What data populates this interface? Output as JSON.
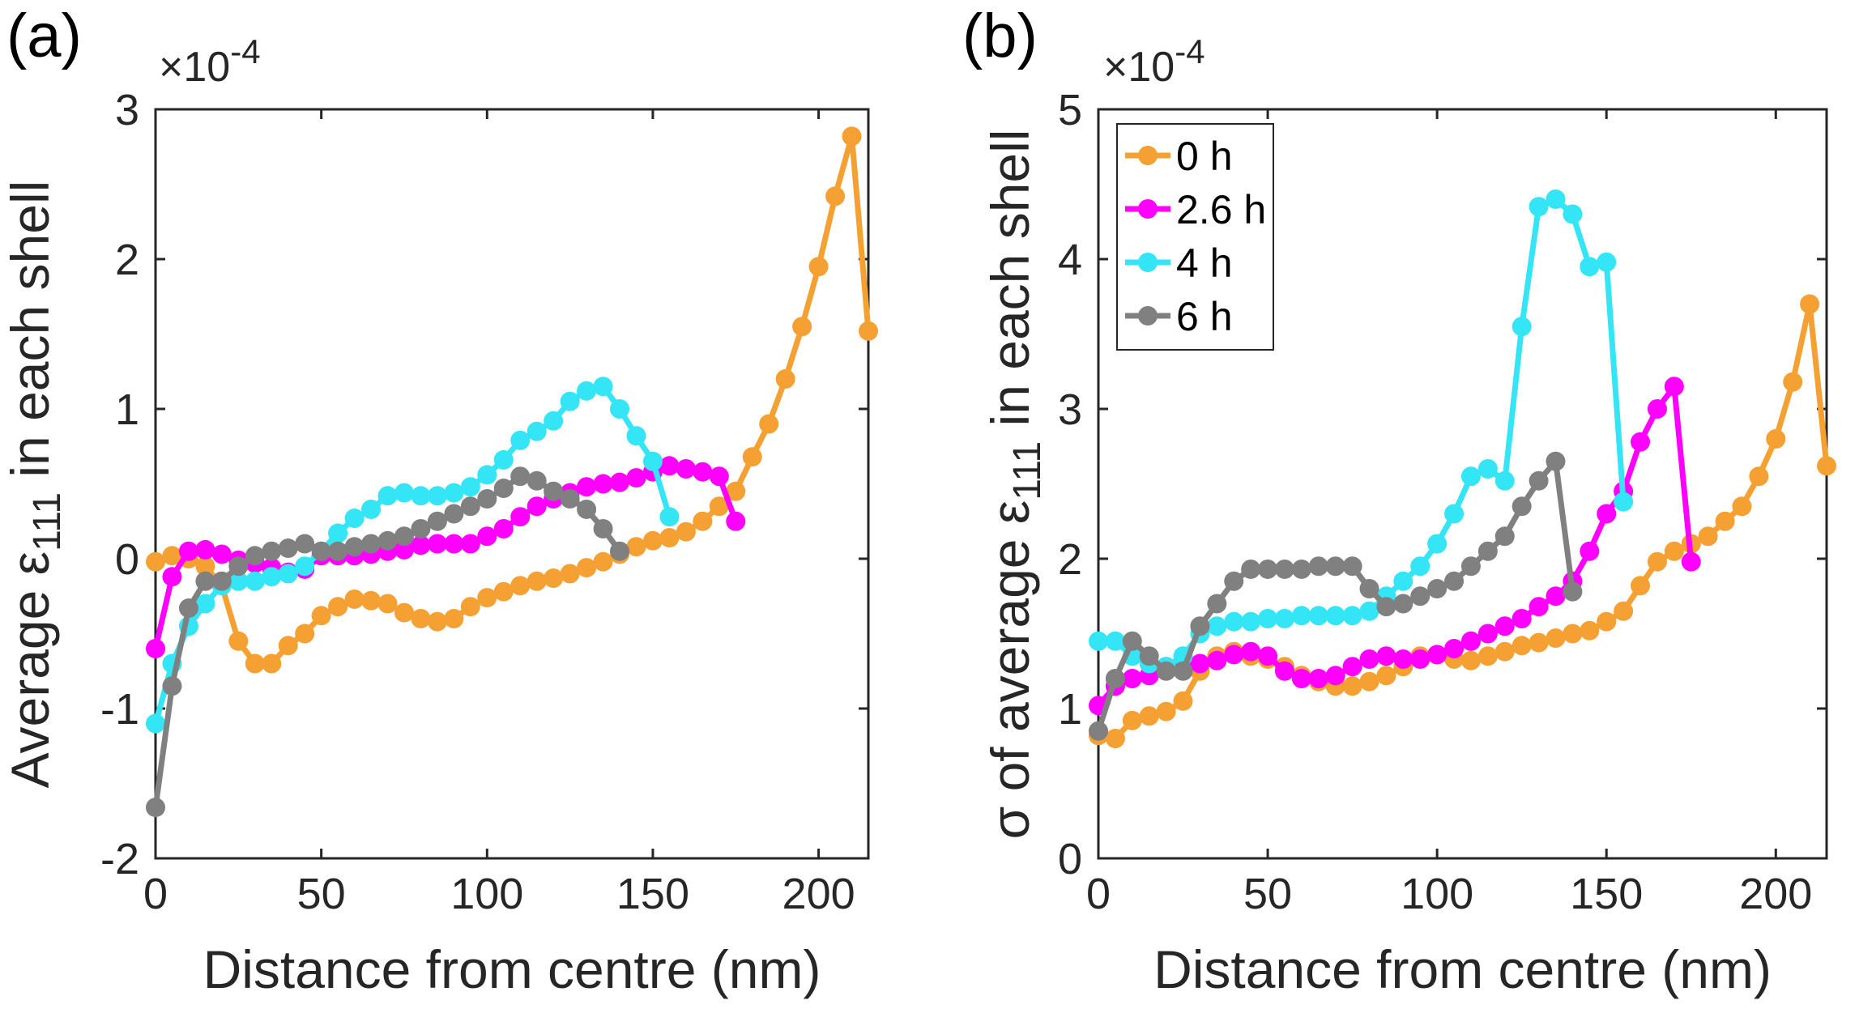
{
  "chart_data": [
    {
      "type": "line",
      "panel_label": "(a)",
      "xlabel": "Distance from centre (nm)",
      "ylabel_prefix": "Average ε",
      "ylabel_sub": "111",
      "ylabel_suffix": " in each shell",
      "y_exponent_base": "×10",
      "y_exponent": "-4",
      "xlim": [
        0,
        215
      ],
      "ylim": [
        -2,
        3
      ],
      "xticks": [
        0,
        50,
        100,
        150,
        200
      ],
      "xtick_labels": [
        "0",
        "50",
        "100",
        "150",
        "200"
      ],
      "yticks": [
        -2,
        -1,
        0,
        1,
        2,
        3
      ],
      "ytick_labels": [
        "-2",
        "-1",
        "0",
        "1",
        "2",
        "3"
      ],
      "legend": null,
      "series": [
        {
          "name": "0 h",
          "color": "#F5A033",
          "x": [
            0,
            5,
            10,
            15,
            20,
            25,
            30,
            35,
            40,
            45,
            50,
            55,
            60,
            65,
            70,
            75,
            80,
            85,
            90,
            95,
            100,
            105,
            110,
            115,
            120,
            125,
            130,
            135,
            140,
            145,
            150,
            155,
            160,
            165,
            170,
            175,
            180,
            185,
            190,
            195,
            200,
            205,
            210,
            215
          ],
          "values": [
            -0.02,
            0.02,
            0.0,
            -0.05,
            -0.18,
            -0.55,
            -0.7,
            -0.7,
            -0.58,
            -0.5,
            -0.38,
            -0.32,
            -0.27,
            -0.28,
            -0.3,
            -0.36,
            -0.4,
            -0.42,
            -0.4,
            -0.32,
            -0.26,
            -0.22,
            -0.18,
            -0.15,
            -0.13,
            -0.1,
            -0.06,
            -0.02,
            0.03,
            0.08,
            0.12,
            0.14,
            0.18,
            0.25,
            0.35,
            0.45,
            0.68,
            0.9,
            1.2,
            1.55,
            1.95,
            2.42,
            2.82,
            1.52
          ]
        },
        {
          "name": "2.6 h",
          "color": "#FF00FF",
          "x": [
            0,
            5,
            10,
            15,
            20,
            25,
            30,
            35,
            40,
            45,
            50,
            55,
            60,
            65,
            70,
            75,
            80,
            85,
            90,
            95,
            100,
            105,
            110,
            115,
            120,
            125,
            130,
            135,
            140,
            145,
            150,
            155,
            160,
            165,
            170,
            175
          ],
          "values": [
            -0.6,
            -0.12,
            0.05,
            0.06,
            0.03,
            -0.01,
            -0.03,
            -0.06,
            -0.09,
            -0.07,
            0.02,
            0.02,
            0.02,
            0.03,
            0.05,
            0.06,
            0.09,
            0.1,
            0.1,
            0.1,
            0.15,
            0.2,
            0.28,
            0.35,
            0.4,
            0.44,
            0.48,
            0.5,
            0.51,
            0.54,
            0.58,
            0.62,
            0.6,
            0.58,
            0.55,
            0.25
          ]
        },
        {
          "name": "4 h",
          "color": "#33E5F5",
          "x": [
            0,
            5,
            10,
            15,
            20,
            25,
            30,
            35,
            40,
            45,
            50,
            55,
            60,
            65,
            70,
            75,
            80,
            85,
            90,
            95,
            100,
            105,
            110,
            115,
            120,
            125,
            130,
            135,
            140,
            145,
            150,
            155
          ],
          "values": [
            -1.1,
            -0.7,
            -0.45,
            -0.3,
            -0.18,
            -0.15,
            -0.15,
            -0.12,
            -0.1,
            -0.05,
            0.05,
            0.17,
            0.27,
            0.33,
            0.42,
            0.44,
            0.42,
            0.42,
            0.44,
            0.48,
            0.56,
            0.66,
            0.79,
            0.85,
            0.92,
            1.05,
            1.12,
            1.15,
            1.0,
            0.82,
            0.65,
            0.28
          ]
        },
        {
          "name": "6 h",
          "color": "#808080",
          "x": [
            0,
            5,
            10,
            15,
            20,
            25,
            30,
            35,
            40,
            45,
            50,
            55,
            60,
            65,
            70,
            75,
            80,
            85,
            90,
            95,
            100,
            105,
            110,
            115,
            120,
            125,
            130,
            135,
            140
          ],
          "values": [
            -1.66,
            -0.85,
            -0.33,
            -0.15,
            -0.15,
            -0.05,
            0.02,
            0.05,
            0.07,
            0.1,
            0.05,
            0.05,
            0.08,
            0.1,
            0.12,
            0.15,
            0.2,
            0.25,
            0.3,
            0.35,
            0.4,
            0.47,
            0.55,
            0.52,
            0.45,
            0.4,
            0.33,
            0.2,
            0.05
          ]
        }
      ]
    },
    {
      "type": "line",
      "panel_label": "(b)",
      "xlabel": "Distance from centre (nm)",
      "ylabel_prefix": "σ of average ε",
      "ylabel_sub": "111",
      "ylabel_suffix": " in each shell",
      "y_exponent_base": "×10",
      "y_exponent": "-4",
      "xlim": [
        0,
        215
      ],
      "ylim": [
        0,
        5
      ],
      "xticks": [
        0,
        50,
        100,
        150,
        200
      ],
      "xtick_labels": [
        "0",
        "50",
        "100",
        "150",
        "200"
      ],
      "yticks": [
        0,
        1,
        2,
        3,
        4,
        5
      ],
      "ytick_labels": [
        "0",
        "1",
        "2",
        "3",
        "4",
        "5"
      ],
      "legend": {
        "position": "top-left",
        "entries": [
          "0 h",
          "2.6 h",
          "4 h",
          "6 h"
        ]
      },
      "series": [
        {
          "name": "0 h",
          "color": "#F5A033",
          "x": [
            0,
            5,
            10,
            15,
            20,
            25,
            30,
            35,
            40,
            45,
            50,
            55,
            60,
            65,
            70,
            75,
            80,
            85,
            90,
            95,
            100,
            105,
            110,
            115,
            120,
            125,
            130,
            135,
            140,
            145,
            150,
            155,
            160,
            165,
            170,
            175,
            180,
            185,
            190,
            195,
            200,
            205,
            210,
            215
          ],
          "values": [
            0.82,
            0.8,
            0.92,
            0.95,
            0.98,
            1.05,
            1.25,
            1.35,
            1.38,
            1.35,
            1.33,
            1.28,
            1.22,
            1.18,
            1.15,
            1.15,
            1.18,
            1.22,
            1.28,
            1.35,
            1.36,
            1.33,
            1.32,
            1.35,
            1.38,
            1.42,
            1.44,
            1.47,
            1.5,
            1.52,
            1.58,
            1.65,
            1.82,
            1.98,
            2.05,
            2.1,
            2.15,
            2.25,
            2.35,
            2.55,
            2.8,
            3.18,
            3.7,
            2.62
          ]
        },
        {
          "name": "2.6 h",
          "color": "#FF00FF",
          "x": [
            0,
            5,
            10,
            15,
            20,
            25,
            30,
            35,
            40,
            45,
            50,
            55,
            60,
            65,
            70,
            75,
            80,
            85,
            90,
            95,
            100,
            105,
            110,
            115,
            120,
            125,
            130,
            135,
            140,
            145,
            150,
            155,
            160,
            165,
            170,
            175
          ],
          "values": [
            1.02,
            1.15,
            1.2,
            1.22,
            1.28,
            1.28,
            1.3,
            1.32,
            1.36,
            1.38,
            1.35,
            1.25,
            1.2,
            1.2,
            1.22,
            1.28,
            1.33,
            1.35,
            1.33,
            1.33,
            1.36,
            1.4,
            1.45,
            1.5,
            1.55,
            1.6,
            1.68,
            1.75,
            1.85,
            2.05,
            2.3,
            2.45,
            2.78,
            3.0,
            3.15,
            1.98
          ]
        },
        {
          "name": "4 h",
          "color": "#33E5F5",
          "x": [
            0,
            5,
            10,
            15,
            20,
            25,
            30,
            35,
            40,
            45,
            50,
            55,
            60,
            65,
            70,
            75,
            80,
            85,
            90,
            95,
            100,
            105,
            110,
            115,
            120,
            125,
            130,
            135,
            140,
            145,
            150,
            155
          ],
          "values": [
            1.45,
            1.45,
            1.35,
            1.3,
            1.28,
            1.35,
            1.5,
            1.55,
            1.58,
            1.58,
            1.6,
            1.6,
            1.62,
            1.62,
            1.62,
            1.62,
            1.65,
            1.75,
            1.85,
            1.95,
            2.1,
            2.3,
            2.55,
            2.6,
            2.52,
            3.55,
            4.35,
            4.4,
            4.3,
            3.95,
            3.98,
            2.38
          ]
        },
        {
          "name": "6 h",
          "color": "#808080",
          "x": [
            0,
            5,
            10,
            15,
            20,
            25,
            30,
            35,
            40,
            45,
            50,
            55,
            60,
            65,
            70,
            75,
            80,
            85,
            90,
            95,
            100,
            105,
            110,
            115,
            120,
            125,
            130,
            135,
            140
          ],
          "values": [
            0.85,
            1.2,
            1.45,
            1.35,
            1.25,
            1.25,
            1.55,
            1.7,
            1.85,
            1.93,
            1.93,
            1.93,
            1.93,
            1.95,
            1.95,
            1.95,
            1.8,
            1.68,
            1.7,
            1.75,
            1.8,
            1.85,
            1.95,
            2.05,
            2.15,
            2.35,
            2.52,
            2.65,
            1.78
          ]
        }
      ]
    }
  ]
}
